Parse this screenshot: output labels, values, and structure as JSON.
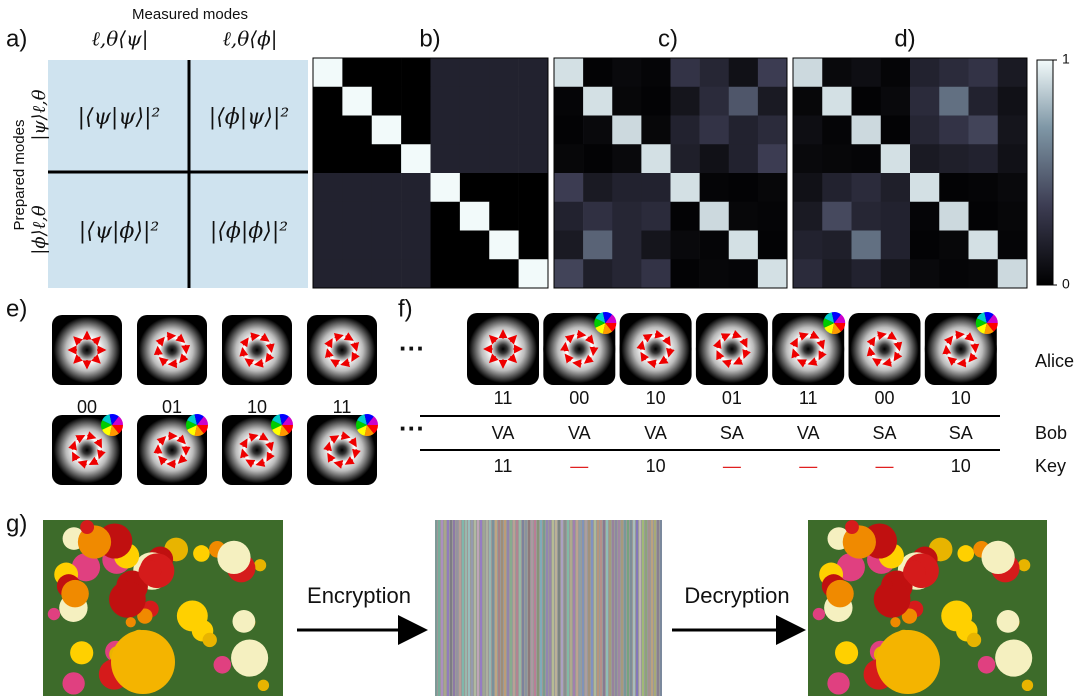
{
  "panel_labels": [
    "a)",
    "b)",
    "c)",
    "d)",
    "e)",
    "f)",
    "g)"
  ],
  "panel_a": {
    "title": "Measured modes",
    "columns": [
      "ℓ,θ⟨ψ|",
      "ℓ,θ⟨ϕ|"
    ],
    "row_title": "Prepared modes",
    "rows": [
      "|ψ⟩ℓ,θ",
      "|ϕ⟩ℓ,θ"
    ],
    "cells": [
      [
        "|⟨ψ|ψ⟩|²",
        "|⟨ϕ|ψ⟩|²"
      ],
      [
        "|⟨ψ|ϕ⟩|²",
        "|⟨ϕ|ϕ⟩|²"
      ]
    ]
  },
  "heatmaps": [
    {
      "matrix": [
        [
          1,
          0,
          0,
          0,
          0.2,
          0.2,
          0.2,
          0.2
        ],
        [
          0,
          1,
          0,
          0,
          0.2,
          0.2,
          0.2,
          0.2
        ],
        [
          0,
          0,
          1,
          0,
          0.2,
          0.2,
          0.2,
          0.2
        ],
        [
          0,
          0,
          0,
          1,
          0.2,
          0.2,
          0.2,
          0.2
        ],
        [
          0.2,
          0.2,
          0.2,
          0.2,
          1,
          0,
          0,
          0
        ],
        [
          0.2,
          0.2,
          0.2,
          0.2,
          0,
          1,
          0,
          0
        ],
        [
          0.2,
          0.2,
          0.2,
          0.2,
          0,
          0,
          1,
          0
        ],
        [
          0.2,
          0.2,
          0.2,
          0.2,
          0,
          0,
          0,
          1
        ]
      ]
    },
    {
      "matrix": [
        [
          0.92,
          0.02,
          0.05,
          0.03,
          0.3,
          0.22,
          0.1,
          0.35
        ],
        [
          0.03,
          0.92,
          0.04,
          0.02,
          0.12,
          0.25,
          0.45,
          0.15
        ],
        [
          0.02,
          0.05,
          0.9,
          0.04,
          0.2,
          0.3,
          0.2,
          0.25
        ],
        [
          0.04,
          0.02,
          0.05,
          0.92,
          0.18,
          0.1,
          0.2,
          0.35
        ],
        [
          0.35,
          0.15,
          0.2,
          0.2,
          0.92,
          0.03,
          0.02,
          0.04
        ],
        [
          0.2,
          0.28,
          0.22,
          0.25,
          0.02,
          0.9,
          0.04,
          0.03
        ],
        [
          0.15,
          0.5,
          0.22,
          0.12,
          0.05,
          0.03,
          0.92,
          0.02
        ],
        [
          0.38,
          0.18,
          0.22,
          0.3,
          0.02,
          0.04,
          0.03,
          0.92
        ]
      ]
    },
    {
      "matrix": [
        [
          0.9,
          0.05,
          0.08,
          0.03,
          0.2,
          0.25,
          0.3,
          0.15
        ],
        [
          0.04,
          0.92,
          0.02,
          0.05,
          0.25,
          0.55,
          0.2,
          0.1
        ],
        [
          0.08,
          0.03,
          0.9,
          0.02,
          0.22,
          0.3,
          0.38,
          0.12
        ],
        [
          0.05,
          0.04,
          0.03,
          0.92,
          0.15,
          0.18,
          0.2,
          0.1
        ],
        [
          0.1,
          0.2,
          0.25,
          0.18,
          0.92,
          0.02,
          0.03,
          0.05
        ],
        [
          0.15,
          0.4,
          0.22,
          0.2,
          0.03,
          0.9,
          0.02,
          0.04
        ],
        [
          0.2,
          0.18,
          0.55,
          0.2,
          0.02,
          0.04,
          0.92,
          0.03
        ],
        [
          0.25,
          0.15,
          0.2,
          0.12,
          0.05,
          0.03,
          0.04,
          0.9
        ]
      ]
    }
  ],
  "colorbar": {
    "range": [
      0,
      1
    ],
    "ticks": [
      0,
      1
    ]
  },
  "panel_e": {
    "labels": [
      "00",
      "01",
      "10",
      "11"
    ]
  },
  "panel_f": {
    "alice": [
      "11",
      "00",
      "10",
      "01",
      "11",
      "00",
      "10"
    ],
    "bob": [
      "VA",
      "VA",
      "VA",
      "SA",
      "VA",
      "SA",
      "SA"
    ],
    "key": [
      "11",
      "—",
      "10",
      "—",
      "—",
      "—",
      "10"
    ],
    "key_colors": [
      "#111111",
      "#e02020",
      "#111111",
      "#e02020",
      "#e02020",
      "#e02020",
      "#111111"
    ],
    "row_labels": [
      "Alice",
      "Bob",
      "Key"
    ]
  },
  "panel_g": {
    "steps": [
      "Encryption",
      "Decryption"
    ]
  }
}
